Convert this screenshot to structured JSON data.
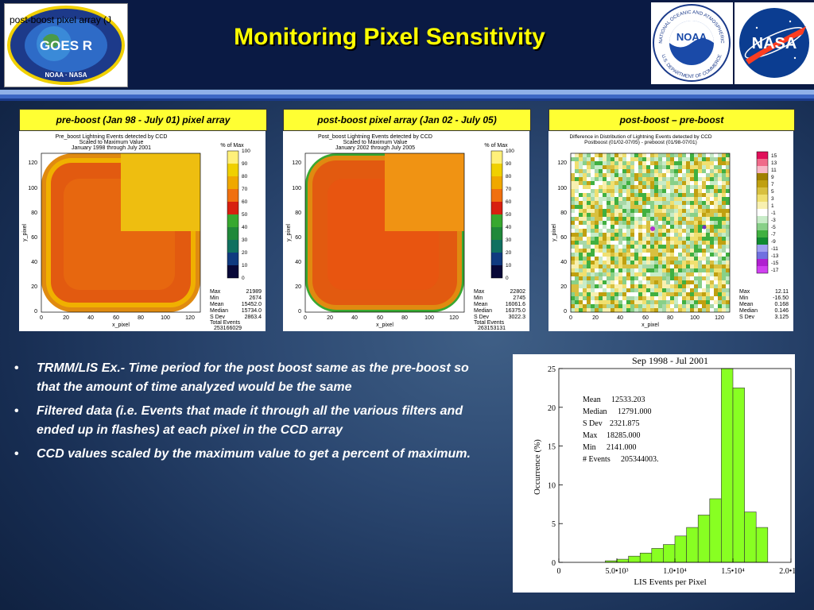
{
  "title": "Monitoring Pixel Sensitivity",
  "overlay_text": "post-boost pixel array (J",
  "logos": {
    "goes_text": "GOES R",
    "goes_ring_bottom": "NOAA · NASA",
    "noaa_text": "NOAA",
    "nasa_text": "NASA",
    "noaa_ring_top": "NATIONAL OCEANIC AND ATMOSPHERIC",
    "noaa_ring_bottom": "U.S. DEPARTMENT OF COMMERCE"
  },
  "panels": [
    {
      "label": "pre-boost (Jan 98 - July 01) pixel array",
      "plot_title": [
        "Pre_boost Lightning Events detected by CCD",
        "Scaled to Maximum Value",
        "January 1998 through July 2001"
      ],
      "legend_title": "% of Max",
      "legend_ticks": [
        "100",
        "90",
        "80",
        "70",
        "60",
        "50",
        "40",
        "30",
        "20",
        "10",
        "0"
      ],
      "y_ticks": [
        "120",
        "100",
        "80",
        "60",
        "40",
        "20",
        "0"
      ],
      "x_ticks": [
        "0",
        "20",
        "40",
        "60",
        "80",
        "100",
        "120"
      ],
      "xlabel": "x_pixel",
      "ylabel": "y_pixel",
      "stats": [
        {
          "k": "Max",
          "v": "21989"
        },
        {
          "k": "Min",
          "v": "2674"
        },
        {
          "k": "Mean",
          "v": "15452.0"
        },
        {
          "k": "Median",
          "v": "15734.0"
        },
        {
          "k": "S Dev",
          "v": "2863.4"
        }
      ],
      "total_label": "Total Events",
      "total_value": "253166029"
    },
    {
      "label": "post-boost pixel array (Jan 02 - July 05)",
      "plot_title": [
        "Post_boost Lightning Events detected by CCD",
        "Scaled to Maximum Value",
        "January 2002 through July 2005"
      ],
      "legend_title": "% of Max",
      "legend_ticks": [
        "100",
        "90",
        "80",
        "70",
        "60",
        "50",
        "40",
        "30",
        "20",
        "10",
        "0"
      ],
      "y_ticks": [
        "120",
        "100",
        "80",
        "60",
        "40",
        "20",
        "0"
      ],
      "x_ticks": [
        "0",
        "20",
        "40",
        "60",
        "80",
        "100",
        "120"
      ],
      "xlabel": "x_pixel",
      "ylabel": "y_pixel",
      "stats": [
        {
          "k": "Max",
          "v": "22802"
        },
        {
          "k": "Min",
          "v": "2745"
        },
        {
          "k": "Mean",
          "v": "16061.6"
        },
        {
          "k": "Median",
          "v": "16375.0"
        },
        {
          "k": "S Dev",
          "v": "3022.3"
        }
      ],
      "total_label": "Total Events",
      "total_value": "263153131"
    },
    {
      "label": "post-boost – pre-boost",
      "plot_title": [
        "Difference in Distribution of Lightning Events detected by CCD",
        "Postboost (01/02-07/05) - preboost (01/98-07/01)"
      ],
      "legend_title": "",
      "legend_ticks": [
        "15",
        "13",
        "11",
        "9",
        "7",
        "5",
        "3",
        "1",
        "-1",
        "-3",
        "-5",
        "-7",
        "-9",
        "-11",
        "-13",
        "-15",
        "-17"
      ],
      "y_ticks": [
        "120",
        "100",
        "80",
        "60",
        "40",
        "20",
        "0"
      ],
      "x_ticks": [
        "0",
        "20",
        "40",
        "60",
        "80",
        "100",
        "120"
      ],
      "xlabel": "x_pixel",
      "ylabel": "y_pixel",
      "stats": [
        {
          "k": "Max",
          "v": "12.11"
        },
        {
          "k": "Min",
          "v": "-16.50"
        },
        {
          "k": "Mean",
          "v": "0.168"
        },
        {
          "k": "Median",
          "v": "0.146"
        },
        {
          "k": "S Dev",
          "v": "3.125"
        }
      ],
      "total_label": "",
      "total_value": ""
    }
  ],
  "bullets": [
    "TRMM/LIS Ex.- Time period for the post boost same as the pre-boost so that the amount of time analyzed would be the same",
    "Filtered data (i.e. Events that made it through all the various filters and ended up in flashes) at each pixel in the CCD array",
    "CCD values scaled by the maximum value to get a percent of maximum."
  ],
  "bullet_marker": "•",
  "colors": {
    "header_bg": "#0a1a44",
    "title": "#ffff00",
    "label_bg": "#ffff33",
    "hist_bar": "#88ff22"
  },
  "chart_data": {
    "type": "bar",
    "title": "Sep 1998 - Jul 2001",
    "xlabel": "LIS Events per Pixel",
    "ylabel": "Occurrence (%)",
    "xlim": [
      0,
      20000
    ],
    "ylim": [
      0,
      25
    ],
    "x_tick_labels": [
      "0",
      "5.0•10³",
      "1.0•10⁴",
      "1.5•10⁴",
      "2.0•10⁴"
    ],
    "y_tick_labels": [
      "0",
      "5",
      "10",
      "15",
      "20",
      "25"
    ],
    "bin_width": 1000,
    "bin_starts": [
      4000,
      5000,
      6000,
      7000,
      8000,
      9000,
      10000,
      11000,
      12000,
      13000,
      14000,
      15000,
      16000,
      17000
    ],
    "values": [
      0.2,
      0.4,
      0.8,
      1.2,
      1.8,
      2.3,
      3.4,
      4.5,
      6.1,
      8.2,
      26.0,
      22.5,
      6.5,
      4.5
    ],
    "stats": [
      {
        "k": "Mean",
        "v": "12533.203"
      },
      {
        "k": "Median",
        "v": "12791.000"
      },
      {
        "k": "S Dev",
        "v": "2321.875"
      },
      {
        "k": "Max",
        "v": "18285.000"
      },
      {
        "k": "Min",
        "v": "2141.000"
      },
      {
        "k": "# Events",
        "v": "205344003."
      }
    ]
  }
}
